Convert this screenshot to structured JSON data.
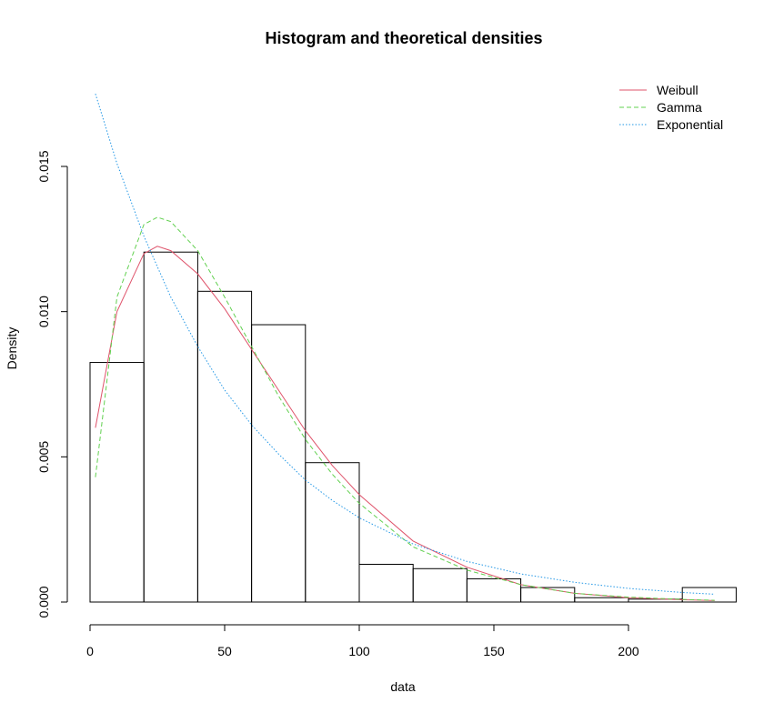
{
  "chart_data": {
    "type": "bar",
    "title": "Histogram and theoretical densities",
    "xlabel": "data",
    "ylabel": "Density",
    "xlim": [
      0,
      240
    ],
    "ylim": [
      0,
      0.018
    ],
    "x_ticks": [
      0,
      50,
      100,
      150,
      200
    ],
    "x_tick_labels": [
      "0",
      "50",
      "100",
      "150",
      "200"
    ],
    "y_ticks": [
      0.0,
      0.005,
      0.01,
      0.015
    ],
    "y_tick_labels": [
      "0.000",
      "0.005",
      "0.010",
      "0.015"
    ],
    "bins": [
      {
        "start": 0,
        "end": 20,
        "density": 0.00825
      },
      {
        "start": 20,
        "end": 40,
        "density": 0.01205
      },
      {
        "start": 40,
        "end": 60,
        "density": 0.0107
      },
      {
        "start": 60,
        "end": 80,
        "density": 0.00955
      },
      {
        "start": 80,
        "end": 100,
        "density": 0.0048
      },
      {
        "start": 100,
        "end": 120,
        "density": 0.0013
      },
      {
        "start": 120,
        "end": 140,
        "density": 0.00115
      },
      {
        "start": 140,
        "end": 160,
        "density": 0.0008
      },
      {
        "start": 160,
        "end": 180,
        "density": 0.0005
      },
      {
        "start": 180,
        "end": 200,
        "density": 0.00015
      },
      {
        "start": 200,
        "end": 220,
        "density": 0.0001
      },
      {
        "start": 220,
        "end": 240,
        "density": 0.0005
      }
    ],
    "series": [
      {
        "name": "Weibull",
        "color": "#DF536B",
        "dash": "solid",
        "x": [
          2,
          10,
          20,
          25,
          30,
          40,
          50,
          60,
          70,
          80,
          90,
          100,
          120,
          140,
          160,
          180,
          200,
          220,
          232
        ],
        "y": [
          0.006,
          0.01,
          0.012,
          0.01225,
          0.0121,
          0.0113,
          0.0101,
          0.0087,
          0.0073,
          0.0059,
          0.0047,
          0.0037,
          0.0021,
          0.0012,
          0.0006,
          0.0003,
          0.00015,
          8e-05,
          5e-05
        ]
      },
      {
        "name": "Gamma",
        "color": "#61D04F",
        "dash": "dashed",
        "x": [
          2,
          10,
          20,
          25,
          30,
          40,
          50,
          60,
          70,
          80,
          90,
          100,
          120,
          140,
          160,
          180,
          200,
          220,
          232
        ],
        "y": [
          0.0043,
          0.0105,
          0.013,
          0.01325,
          0.0131,
          0.0121,
          0.0105,
          0.0088,
          0.0071,
          0.0056,
          0.0044,
          0.0034,
          0.0019,
          0.0011,
          0.0006,
          0.0003,
          0.00017,
          9e-05,
          6e-05
        ]
      },
      {
        "name": "Exponential",
        "color": "#2297E6",
        "dash": "dotted",
        "x": [
          2,
          10,
          20,
          30,
          40,
          50,
          60,
          70,
          80,
          90,
          100,
          120,
          140,
          160,
          180,
          200,
          220,
          232
        ],
        "y": [
          0.0175,
          0.0151,
          0.0126,
          0.0105,
          0.0088,
          0.0073,
          0.0061,
          0.0051,
          0.0042,
          0.0035,
          0.0029,
          0.002,
          0.0014,
          0.00097,
          0.00068,
          0.00047,
          0.00033,
          0.00027
        ]
      }
    ],
    "legend": "top-right",
    "grid": false
  }
}
